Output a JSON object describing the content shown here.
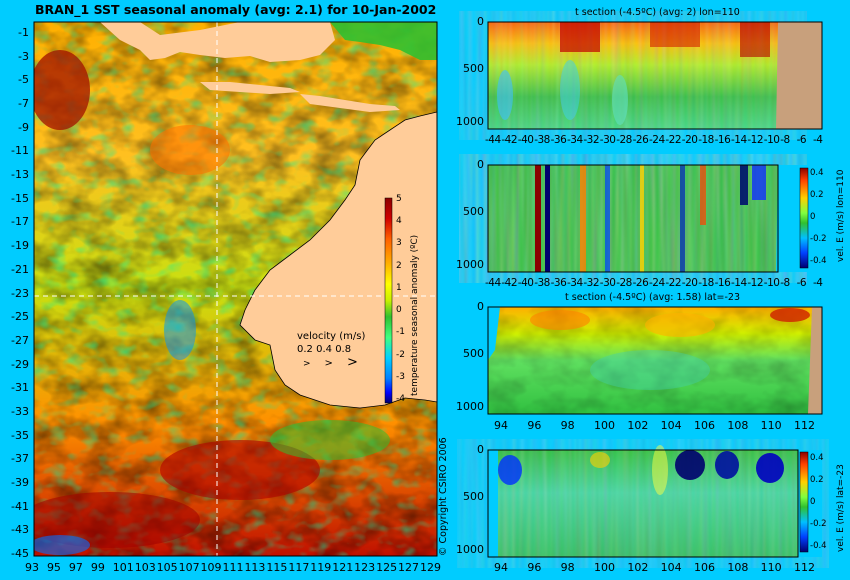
{
  "header": {
    "title": "BRAN_1  SST seasonal anomaly  (avg: 2.1) for 10-Jan-2002",
    "copyright": "© Copyright CSIRO 2006"
  },
  "colors": {
    "background": "#00ccff",
    "land": "#ffcc99",
    "section_land": "#c8a07c",
    "palette": [
      "#00006e",
      "#0000ff",
      "#0080ff",
      "#00d0ff",
      "#40ff80",
      "#30c030",
      "#c8f000",
      "#ffff00",
      "#ffb000",
      "#ff6000",
      "#d00000",
      "#8b0000"
    ]
  },
  "chart_data": [
    {
      "type": "heatmap",
      "id": "sst-map",
      "title": "BRAN_1  SST seasonal anomaly  (avg: 2.1) for 10-Jan-2002",
      "x_ticks": [
        "93",
        "95",
        "97",
        "99",
        "101",
        "103",
        "105",
        "107",
        "109",
        "111",
        "113",
        "115",
        "117",
        "119",
        "121",
        "123",
        "125",
        "127",
        "129"
      ],
      "y_ticks": [
        "-1",
        "-3",
        "-5",
        "-7",
        "-9",
        "-11",
        "-13",
        "-15",
        "-17",
        "-19",
        "-21",
        "-23",
        "-25",
        "-27",
        "-29",
        "-31",
        "-33",
        "-35",
        "-37",
        "-39",
        "-41",
        "-43",
        "-45"
      ],
      "xlim": [
        93,
        130
      ],
      "ylim": [
        -45,
        1
      ],
      "colorbar": {
        "label": "temperature seasonal anomaly (ºC)",
        "ticks": [
          "5",
          "4",
          "3",
          "2",
          "1",
          "0",
          "-1",
          "-2",
          "-3",
          "-4"
        ],
        "range": [
          -4,
          5
        ]
      },
      "velocity_legend": {
        "label": "velocity (m/s)",
        "values": [
          "0.2",
          "0.4",
          "0.8"
        ],
        "arrows": [
          ">",
          ">",
          ">"
        ]
      },
      "section_lines": {
        "lon": 110,
        "lat": -23
      }
    },
    {
      "type": "heatmap",
      "id": "t-section-lon",
      "title": "t section (-4.5ºC) (avg: 2) lon=110",
      "x_ticks": [
        "-44",
        "-42",
        "-40",
        "-38",
        "-36",
        "-34",
        "-32",
        "-30",
        "-28",
        "-26",
        "-24",
        "-22",
        "-20",
        "-18",
        "-16",
        "-14",
        "-12",
        "-10",
        "-8",
        "-6",
        "-4"
      ],
      "y_ticks": [
        "0",
        "500",
        "1000"
      ],
      "ylim": [
        1050,
        0
      ]
    },
    {
      "type": "heatmap",
      "id": "vel-section-lon",
      "title": "",
      "x_ticks": [
        "-44",
        "-42",
        "-40",
        "-38",
        "-36",
        "-34",
        "-32",
        "-30",
        "-28",
        "-26",
        "-24",
        "-22",
        "-20",
        "-18",
        "-16",
        "-14",
        "-12",
        "-10",
        "-8",
        "-6",
        "-4"
      ],
      "y_ticks": [
        "0",
        "500",
        "1000"
      ],
      "colorbar": {
        "label": "vel. E (m/s) lon=110",
        "ticks": [
          "0.4",
          "0.2",
          "0",
          "-0.2",
          "-0.4"
        ],
        "range": [
          -0.45,
          0.45
        ]
      }
    },
    {
      "type": "heatmap",
      "id": "t-section-lat",
      "title": "t section (-4.5ºC) (avg: 1.58) lat=-23",
      "x_ticks": [
        "94",
        "96",
        "98",
        "100",
        "102",
        "104",
        "106",
        "108",
        "110",
        "112"
      ],
      "y_ticks": [
        "0",
        "500",
        "1000"
      ],
      "ylim": [
        1050,
        0
      ]
    },
    {
      "type": "heatmap",
      "id": "vel-section-lat",
      "title": "",
      "x_ticks": [
        "94",
        "96",
        "98",
        "100",
        "102",
        "104",
        "106",
        "108",
        "110",
        "112"
      ],
      "y_ticks": [
        "0",
        "500",
        "1000"
      ],
      "colorbar": {
        "label": "vel. E (m/s) lat=-23",
        "ticks": [
          "0.4",
          "0.2",
          "0",
          "-0.2",
          "-0.4"
        ],
        "range": [
          -0.45,
          0.45
        ]
      }
    }
  ]
}
